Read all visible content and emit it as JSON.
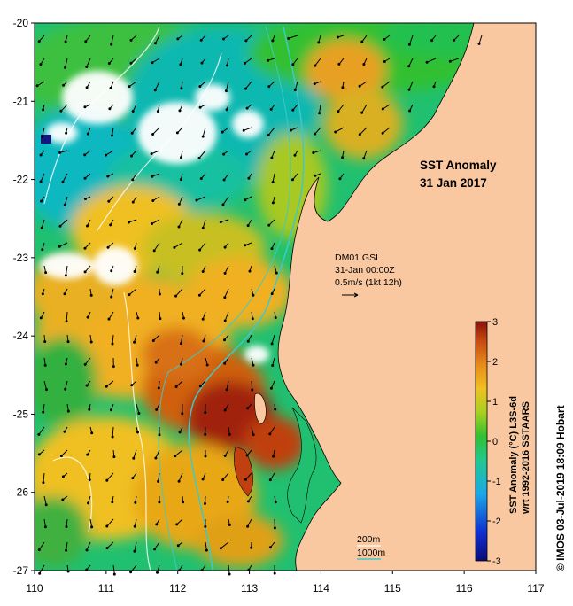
{
  "map": {
    "title_line1": "SST Anomaly",
    "title_line2": "31 Jan 2017",
    "current_source": "DM01 GSL",
    "current_time": "31-Jan 00:00Z",
    "current_scale": "0.5m/s (1kt 12h)",
    "depth_contour_1": "200m",
    "depth_contour_2": "1000m",
    "copyright": "© IMOS 03-Jul-2019 18:09 Hobart",
    "x_axis": {
      "ticks": [
        "110",
        "111",
        "112",
        "113",
        "114",
        "115",
        "116",
        "117"
      ],
      "min": 110,
      "max": 117
    },
    "y_axis": {
      "ticks": [
        "-20",
        "-21",
        "-22",
        "-23",
        "-24",
        "-25",
        "-26",
        "-27"
      ],
      "min": -27,
      "max": -20
    },
    "colorbar": {
      "label_line1": "SST Anomaly (°C) L3S-6d",
      "label_line2": "wrt 1992-2016 SSTAARS",
      "ticks": [
        "3",
        "2",
        "1",
        "0",
        "-1",
        "-2",
        "-3"
      ],
      "min": -3,
      "max": 3
    },
    "colors": {
      "land": "#f9c8a0",
      "shelf_contour": "#ffffff",
      "deep_contour": "#40c8c8"
    }
  }
}
